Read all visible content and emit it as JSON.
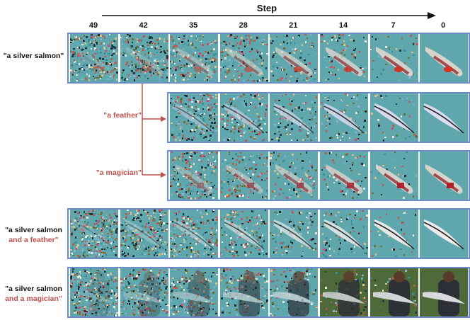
{
  "header": {
    "title": "Step",
    "steps": [
      "49",
      "42",
      "35",
      "28",
      "21",
      "14",
      "7",
      "0"
    ]
  },
  "rows": [
    {
      "label_line1": "\"a silver salmon\"",
      "label_line2": "",
      "subject": "salmon",
      "start_index": 0,
      "highlight_index": 1
    },
    {
      "label_line1": "\"a feather\"",
      "label_line2": "",
      "subject": "feather",
      "start_index": 2,
      "highlight_index": 2
    },
    {
      "label_line1": "\"a magician\"",
      "label_line2": "",
      "subject": "salmon-tag",
      "start_index": 2,
      "highlight_index": 2
    },
    {
      "label_line1": "\"a silver salmon",
      "label_line2": "and a feather\"",
      "subject": "feather-dark",
      "start_index": 0,
      "highlight_index": -1
    },
    {
      "label_line1": "\"a silver salmon",
      "label_line2": "and a magician\"",
      "subject": "person-fish",
      "start_index": 0,
      "highlight_index": -1
    }
  ],
  "colors": {
    "strip_border": "#6b8cc9",
    "highlight": "#c0504d",
    "noise_teal": "#4fa0a8",
    "noise_dark": "#2b2b2b"
  }
}
